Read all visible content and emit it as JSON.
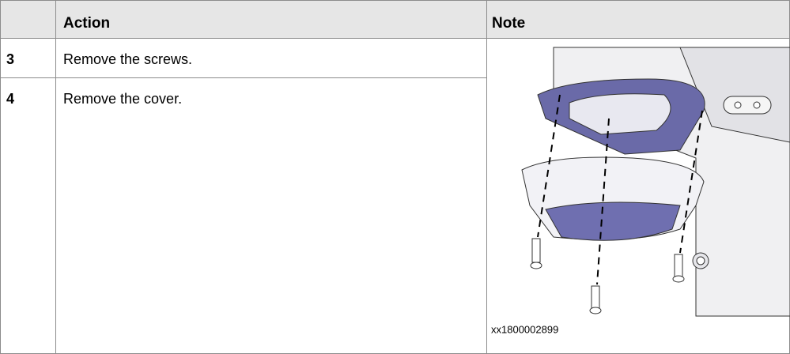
{
  "table": {
    "header": {
      "action": "Action",
      "note": "Note"
    },
    "rows": [
      {
        "step": "3",
        "action": "Remove the screws."
      },
      {
        "step": "4",
        "action": "Remove the cover."
      }
    ]
  },
  "figure": {
    "caption": "xx1800002899"
  }
}
